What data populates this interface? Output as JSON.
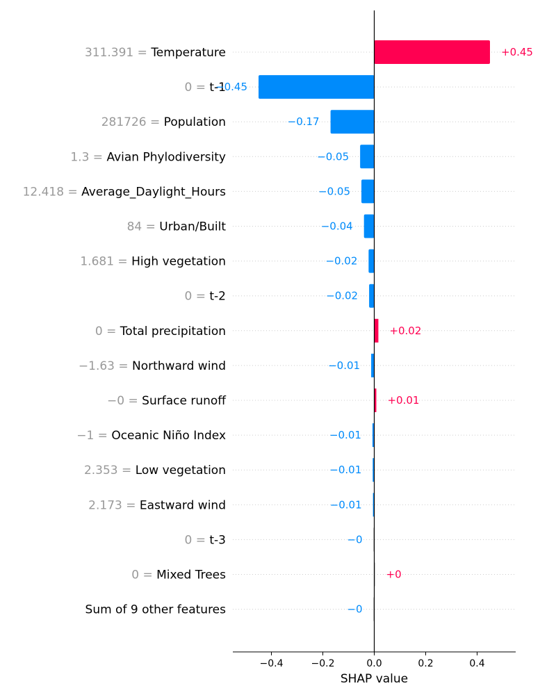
{
  "chart_data": {
    "type": "bar",
    "orientation": "horizontal",
    "title": "",
    "xlabel": "SHAP value",
    "ylabel": "",
    "xlim": [
      -0.55,
      0.55
    ],
    "xticks": [
      -0.4,
      -0.2,
      0.0,
      0.2,
      0.4
    ],
    "xtick_labels": [
      "−0.4",
      "−0.2",
      "0.0",
      "0.2",
      "0.4"
    ],
    "grid": "dotted-horizontal",
    "colors": {
      "positive": "#ff0051",
      "negative": "#008bfb",
      "neutral": "#cccccc",
      "value_gray": "#999999"
    },
    "rows": [
      {
        "feature_value": "311.391",
        "feature": "Temperature",
        "value": 0.45,
        "label": "+0.45"
      },
      {
        "feature_value": "0",
        "feature": "t-1",
        "value": -0.45,
        "label": "−0.45"
      },
      {
        "feature_value": "281726",
        "feature": "Population",
        "value": -0.17,
        "label": "−0.17"
      },
      {
        "feature_value": "1.3",
        "feature": "Avian Phylodiversity",
        "value": -0.055,
        "label": "−0.05"
      },
      {
        "feature_value": "12.418",
        "feature": "Average_Daylight_Hours",
        "value": -0.05,
        "label": "−0.05"
      },
      {
        "feature_value": "84",
        "feature": "Urban/Built",
        "value": -0.04,
        "label": "−0.04"
      },
      {
        "feature_value": "1.681",
        "feature": "High vegetation",
        "value": -0.022,
        "label": "−0.02"
      },
      {
        "feature_value": "0",
        "feature": "t-2",
        "value": -0.02,
        "label": "−0.02"
      },
      {
        "feature_value": "0",
        "feature": "Total precipitation",
        "value": 0.016,
        "label": "+0.02"
      },
      {
        "feature_value": "−1.63",
        "feature": "Northward wind",
        "value": -0.012,
        "label": "−0.01"
      },
      {
        "feature_value": "−0",
        "feature": "Surface runoff",
        "value": 0.008,
        "label": "+0.01"
      },
      {
        "feature_value": "−1",
        "feature": "Oceanic Niño Index",
        "value": -0.007,
        "label": "−0.01"
      },
      {
        "feature_value": "2.353",
        "feature": "Low vegetation",
        "value": -0.006,
        "label": "−0.01"
      },
      {
        "feature_value": "2.173",
        "feature": "Eastward wind",
        "value": -0.005,
        "label": "−0.01"
      },
      {
        "feature_value": "0",
        "feature": "t-3",
        "value": -0.002,
        "label": "−0"
      },
      {
        "feature_value": "0",
        "feature": "Mixed Trees",
        "value": 0.001,
        "label": "+0"
      },
      {
        "feature_value": "",
        "feature": "Sum of 9 other features",
        "value": -0.001,
        "label": "−0"
      }
    ]
  }
}
